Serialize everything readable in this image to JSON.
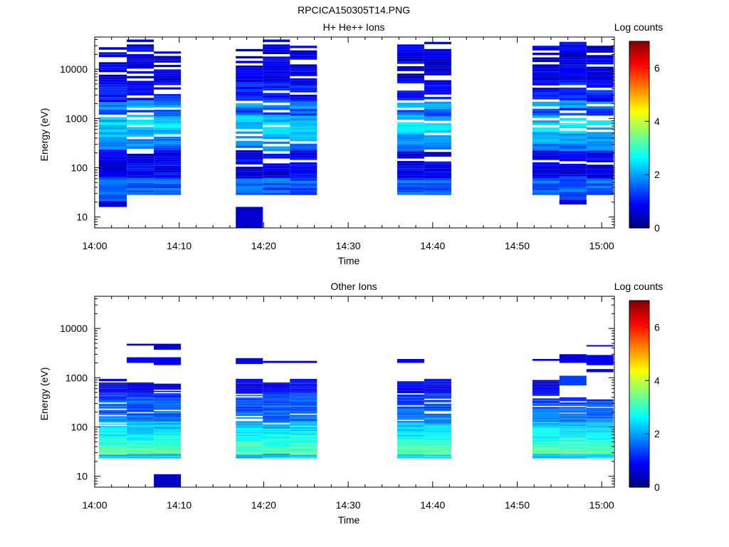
{
  "figure_title": "RPCICA150305T14.PNG",
  "colorscale": [
    "#00007f",
    "#0000ff",
    "#007fff",
    "#00ffff",
    "#7fff7f",
    "#ffff00",
    "#ff7f00",
    "#ff0000",
    "#7f0000"
  ],
  "chart_data": [
    {
      "type": "heatmap",
      "title": "H+ He++ Ions",
      "xlabel": "Time",
      "ylabel": "Energy (eV)",
      "x_ticks": [
        "14:00",
        "14:10",
        "14:20",
        "14:30",
        "14:40",
        "14:50",
        "15:00"
      ],
      "x_tick_minutes": [
        0,
        10,
        20,
        30,
        40,
        50,
        60
      ],
      "xlim_minutes": [
        0,
        61.5
      ],
      "y_ticks": [
        "10",
        "100",
        "1000",
        "10000"
      ],
      "y_tick_values": [
        10,
        100,
        1000,
        10000
      ],
      "ylim": [
        6,
        45000
      ],
      "y_scale": "log",
      "colorbar": {
        "label": "Log counts",
        "ticks": [
          "0",
          "2",
          "4",
          "6"
        ],
        "tick_values": [
          0,
          2,
          4,
          6
        ],
        "range": [
          0,
          7
        ]
      },
      "columns": [
        {
          "t0": 0.5,
          "t1": 3.8,
          "profile": "A",
          "seed": 11,
          "emin": 16,
          "emax": 28000,
          "extra": [
            [
              16,
              21,
              0.6
            ]
          ]
        },
        {
          "t0": 3.8,
          "t1": 7.0,
          "profile": "A",
          "seed": 12,
          "emin": 28,
          "emax": 40000
        },
        {
          "t0": 7.0,
          "t1": 10.2,
          "profile": "A",
          "seed": 13,
          "emin": 28,
          "emax": 23000
        },
        {
          "t0": 16.7,
          "t1": 19.9,
          "profile": "A",
          "seed": 14,
          "emin": 28,
          "emax": 32000,
          "extra": [
            [
              6,
              16,
              0.55
            ]
          ]
        },
        {
          "t0": 19.9,
          "t1": 23.1,
          "profile": "A",
          "seed": 15,
          "emin": 28,
          "emax": 40000
        },
        {
          "t0": 23.1,
          "t1": 26.3,
          "profile": "A",
          "seed": 16,
          "emin": 28,
          "emax": 30000
        },
        {
          "t0": 35.8,
          "t1": 39.0,
          "profile": "A",
          "seed": 17,
          "emin": 28,
          "emax": 40000
        },
        {
          "t0": 39.0,
          "t1": 42.2,
          "profile": "A",
          "seed": 18,
          "emin": 28,
          "emax": 36000
        },
        {
          "t0": 51.8,
          "t1": 55.0,
          "profile": "A",
          "seed": 19,
          "emin": 28,
          "emax": 30000
        },
        {
          "t0": 55.0,
          "t1": 58.2,
          "profile": "A",
          "seed": 20,
          "emin": 18,
          "emax": 36000,
          "extra": [
            [
              18,
              22,
              0.6
            ]
          ]
        },
        {
          "t0": 58.2,
          "t1": 61.4,
          "profile": "A",
          "seed": 21,
          "emin": 28,
          "emax": 30000
        }
      ]
    },
    {
      "type": "heatmap",
      "title": "Other Ions",
      "xlabel": "Time",
      "ylabel": "Energy (eV)",
      "x_ticks": [
        "14:00",
        "14:10",
        "14:20",
        "14:30",
        "14:40",
        "14:50",
        "15:00"
      ],
      "x_tick_minutes": [
        0,
        10,
        20,
        30,
        40,
        50,
        60
      ],
      "xlim_minutes": [
        0,
        61.5
      ],
      "y_ticks": [
        "10",
        "100",
        "1000",
        "10000"
      ],
      "y_tick_values": [
        10,
        100,
        1000,
        10000
      ],
      "ylim": [
        6,
        45000
      ],
      "y_scale": "log",
      "colorbar": {
        "label": "Log counts",
        "ticks": [
          "0",
          "2",
          "4",
          "6"
        ],
        "tick_values": [
          0,
          2,
          4,
          6
        ],
        "range": [
          0,
          7
        ]
      },
      "columns": [
        {
          "t0": 0.5,
          "t1": 3.8,
          "profile": "B",
          "seed": 31,
          "emin": 23,
          "emax": 950
        },
        {
          "t0": 3.8,
          "t1": 7.0,
          "profile": "B",
          "seed": 32,
          "emin": 23,
          "emax": 800,
          "extra": [
            [
              2000,
              2600,
              0.9
            ],
            [
              4500,
              4900,
              0.6
            ]
          ]
        },
        {
          "t0": 7.0,
          "t1": 10.2,
          "profile": "B",
          "seed": 33,
          "emin": 23,
          "emax": 800,
          "extra": [
            [
              1800,
              2600,
              0.8
            ],
            [
              3700,
              4900,
              0.6
            ],
            [
              6,
              11,
              0.5
            ]
          ]
        },
        {
          "t0": 16.7,
          "t1": 19.9,
          "profile": "B",
          "seed": 34,
          "emin": 23,
          "emax": 950,
          "extra": [
            [
              1900,
              2500,
              0.9
            ]
          ]
        },
        {
          "t0": 19.9,
          "t1": 23.1,
          "profile": "B",
          "seed": 35,
          "emin": 23,
          "emax": 800,
          "extra": [
            [
              2000,
              2200,
              0.6
            ]
          ]
        },
        {
          "t0": 23.1,
          "t1": 26.3,
          "profile": "B",
          "seed": 36,
          "emin": 23,
          "emax": 950,
          "extra": [
            [
              2000,
              2200,
              0.6
            ]
          ]
        },
        {
          "t0": 35.8,
          "t1": 39.0,
          "profile": "B",
          "seed": 37,
          "emin": 23,
          "emax": 850,
          "extra": [
            [
              2000,
              2400,
              0.8
            ]
          ]
        },
        {
          "t0": 39.0,
          "t1": 42.2,
          "profile": "B",
          "seed": 38,
          "emin": 23,
          "emax": 950
        },
        {
          "t0": 51.8,
          "t1": 55.0,
          "profile": "B",
          "seed": 39,
          "emin": 23,
          "emax": 900,
          "extra": [
            [
              2200,
              2400,
              0.7
            ]
          ]
        },
        {
          "t0": 55.0,
          "t1": 58.2,
          "profile": "B",
          "seed": 40,
          "emin": 23,
          "emax": 400,
          "extra": [
            [
              700,
              1100,
              1.3
            ],
            [
              2000,
              3000,
              0.7
            ]
          ]
        },
        {
          "t0": 58.2,
          "t1": 61.4,
          "profile": "B",
          "seed": 41,
          "emin": 23,
          "emax": 380,
          "extra": [
            [
              1300,
              1500,
              0.6
            ],
            [
              1800,
              2900,
              0.8
            ],
            [
              4300,
              4600,
              0.6
            ]
          ]
        }
      ]
    }
  ]
}
